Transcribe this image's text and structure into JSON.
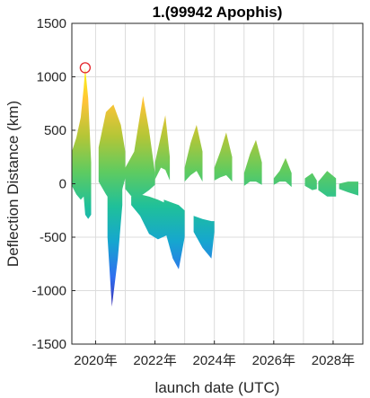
{
  "chart_data": {
    "type": "area",
    "title": "1.(99942 Apophis)",
    "xlabel": "launch date (UTC)",
    "ylabel": "Deflection Distance (km)",
    "ylim": [
      -1500,
      1500
    ],
    "yticks": [
      -1500,
      -1000,
      -500,
      0,
      500,
      1000,
      1500
    ],
    "xlim": [
      2019.2,
      2029.0
    ],
    "xticks": [
      {
        "value": 2020,
        "label": "2020年"
      },
      {
        "value": 2022,
        "label": "2022年"
      },
      {
        "value": 2024,
        "label": "2024年"
      },
      {
        "value": 2026,
        "label": "2026年"
      },
      {
        "value": 2028,
        "label": "2028年"
      }
    ],
    "minor_xgrid": [
      2021,
      2023,
      2025,
      2027
    ],
    "grid": true,
    "colormap": [
      "#3e26a8",
      "#2f6ff0",
      "#16a6cf",
      "#1fc09a",
      "#5fcb60",
      "#b3c637",
      "#ffc337",
      "#f9fb0e"
    ],
    "marker": {
      "x": 2019.65,
      "y": 1085,
      "color": "#e4262c"
    },
    "bands": [
      {
        "x": [
          2019.2,
          2019.35,
          2019.5,
          2019.6,
          2019.65,
          2019.75,
          2019.85
        ],
        "upper": [
          300,
          430,
          620,
          900,
          1085,
          800,
          200
        ],
        "lower": [
          -20,
          -100,
          -150,
          -120,
          -290,
          -330,
          -290
        ]
      },
      {
        "x": [
          2020.1,
          2020.35,
          2020.6,
          2020.85,
          2021.0
        ],
        "upper": [
          340,
          670,
          740,
          550,
          300
        ],
        "lower": [
          20,
          -100,
          -200,
          -100,
          50
        ]
      },
      {
        "x": [
          2020.4,
          2020.55,
          2020.75,
          2020.9
        ],
        "upper": [
          100,
          50,
          0,
          30
        ],
        "lower": [
          -500,
          -1150,
          -700,
          -200
        ]
      },
      {
        "x": [
          2021.0,
          2021.3,
          2021.6,
          2021.8,
          2022.0
        ],
        "upper": [
          150,
          300,
          820,
          500,
          100
        ],
        "lower": [
          -50,
          -150,
          -100,
          -60,
          -10
        ]
      },
      {
        "x": [
          2021.2,
          2021.5,
          2021.8,
          2022.1,
          2022.5
        ],
        "upper": [
          -120,
          -100,
          -120,
          -150,
          -200
        ],
        "lower": [
          -200,
          -300,
          -470,
          -520,
          -470
        ]
      },
      {
        "x": [
          2022.0,
          2022.2,
          2022.35,
          2022.5
        ],
        "upper": [
          200,
          450,
          640,
          250
        ],
        "lower": [
          40,
          150,
          130,
          30
        ]
      },
      {
        "x": [
          2022.3,
          2022.6,
          2022.8,
          2023.0
        ],
        "upper": [
          -150,
          -180,
          -200,
          -250
        ],
        "lower": [
          -400,
          -700,
          -800,
          -500
        ]
      },
      {
        "x": [
          2023.0,
          2023.2,
          2023.4,
          2023.6
        ],
        "upper": [
          150,
          380,
          550,
          300
        ],
        "lower": [
          20,
          80,
          120,
          20
        ]
      },
      {
        "x": [
          2023.3,
          2023.6,
          2023.9,
          2024.0
        ],
        "upper": [
          -300,
          -330,
          -350,
          -350
        ],
        "lower": [
          -450,
          -600,
          -700,
          -450
        ]
      },
      {
        "x": [
          2024.0,
          2024.2,
          2024.4,
          2024.6
        ],
        "upper": [
          150,
          300,
          480,
          250
        ],
        "lower": [
          30,
          60,
          80,
          20
        ]
      },
      {
        "x": [
          2025.0,
          2025.2,
          2025.4,
          2025.6
        ],
        "upper": [
          100,
          280,
          410,
          200
        ],
        "lower": [
          -20,
          20,
          20,
          -10
        ]
      },
      {
        "x": [
          2026.0,
          2026.2,
          2026.4,
          2026.6
        ],
        "upper": [
          50,
          120,
          240,
          100
        ],
        "lower": [
          -10,
          20,
          20,
          -30
        ]
      },
      {
        "x": [
          2027.05,
          2027.3,
          2027.45
        ],
        "upper": [
          50,
          100,
          30
        ],
        "lower": [
          -20,
          -60,
          -50
        ]
      },
      {
        "x": [
          2027.5,
          2027.8,
          2028.1
        ],
        "upper": [
          20,
          120,
          50
        ],
        "lower": [
          -60,
          -120,
          -120
        ]
      },
      {
        "x": [
          2028.2,
          2028.5,
          2028.85
        ],
        "upper": [
          0,
          20,
          20
        ],
        "lower": [
          -50,
          -80,
          -110
        ]
      }
    ]
  }
}
